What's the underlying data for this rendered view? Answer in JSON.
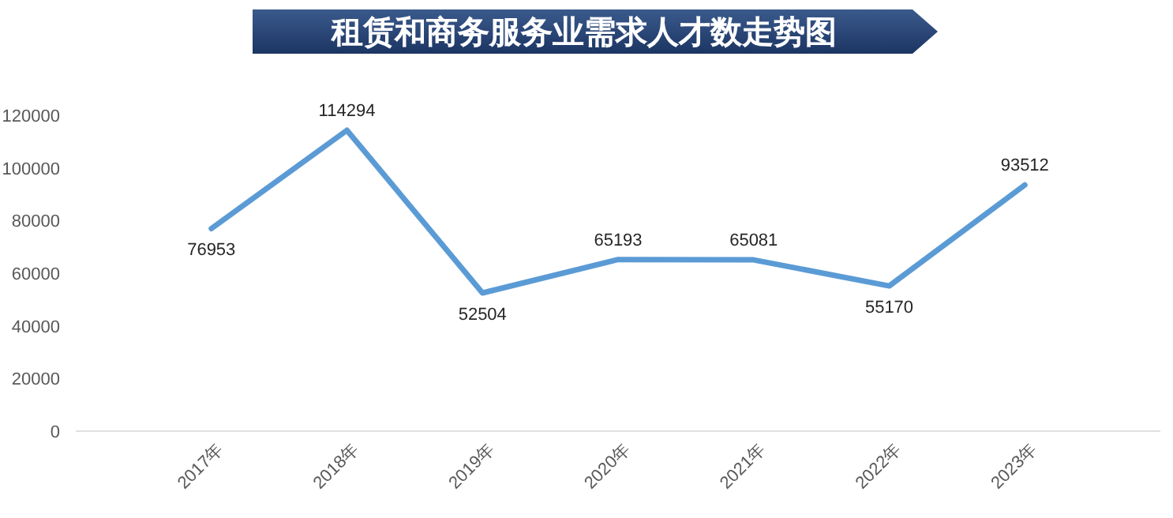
{
  "chart_data": {
    "type": "line",
    "title": "租赁和商务服务业需求人才数走势图",
    "categories": [
      "2017年",
      "2018年",
      "2019年",
      "2020年",
      "2021年",
      "2022年",
      "2023年"
    ],
    "series": [
      {
        "color": "#5b9bd5",
        "values": [
          76953,
          114294,
          52504,
          65193,
          65081,
          55170,
          93512
        ]
      }
    ],
    "ylim": [
      0,
      120000
    ],
    "yticks": [
      0,
      20000,
      40000,
      60000,
      80000,
      100000,
      120000
    ],
    "data_labels": true,
    "grid": false,
    "marker": "none",
    "line_style": "solid"
  }
}
